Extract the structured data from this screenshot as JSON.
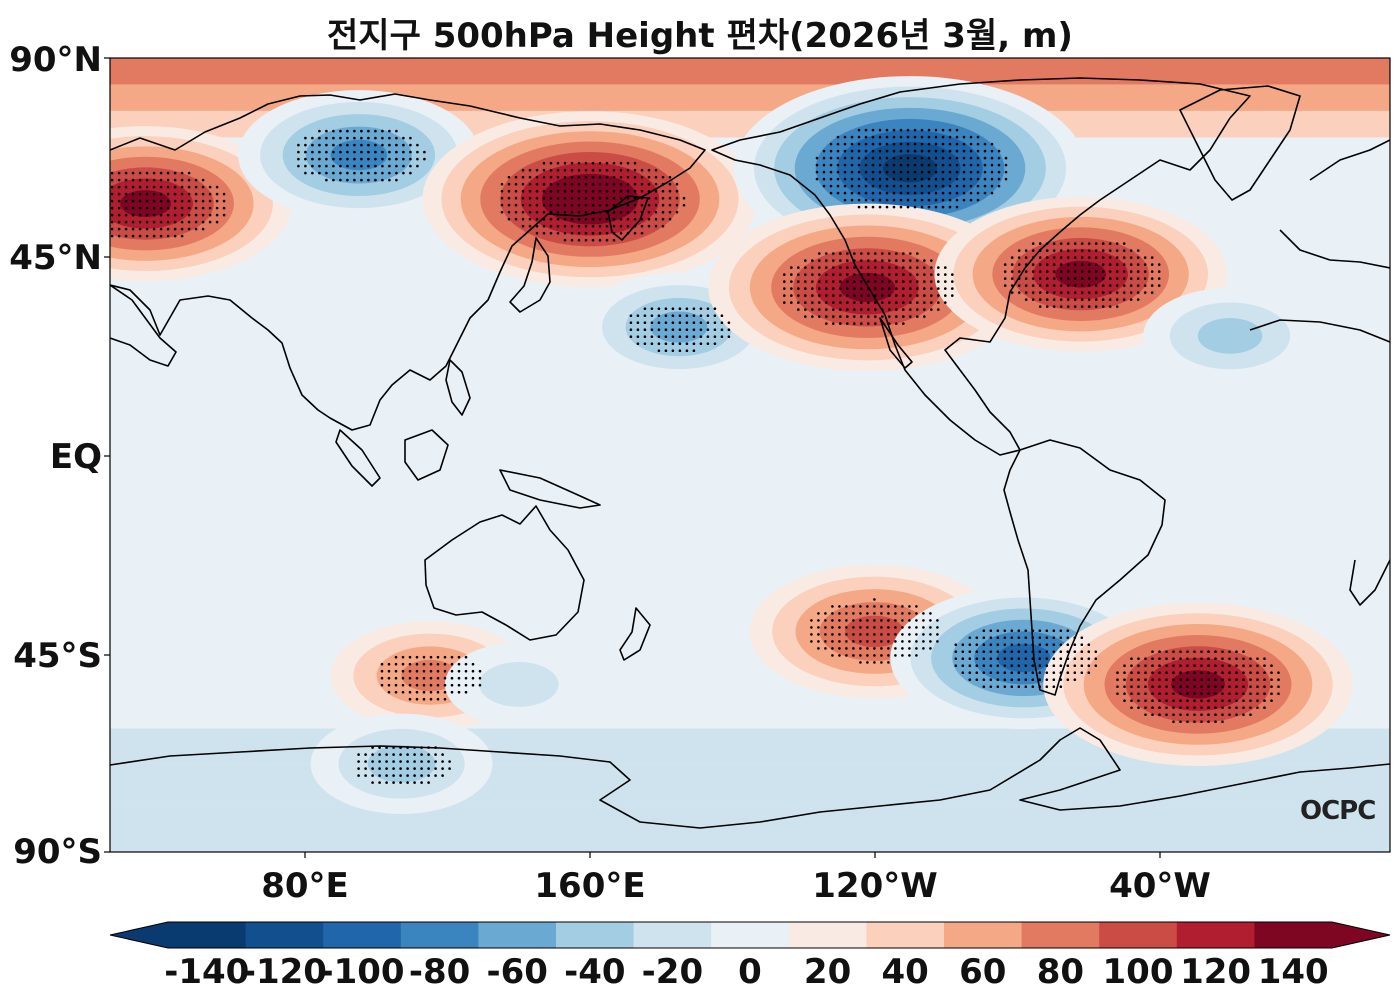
{
  "title": "전지구 500hPa Height 편차(2026년 3월, m)",
  "watermark": "OCPC",
  "axes": {
    "lat_labels": [
      "90°N",
      "45°N",
      "EQ",
      "45°S",
      "90°S"
    ],
    "lon_labels": [
      "80°E",
      "160°E",
      "120°W",
      "40°W"
    ]
  },
  "colorbar": {
    "labels": [
      "-140",
      "-120",
      "-100",
      "-80",
      "-60",
      "-40",
      "-20",
      "0",
      "20",
      "40",
      "60",
      "80",
      "100",
      "120",
      "140"
    ],
    "colors": [
      "#0a3b70",
      "#124f8e",
      "#1f66aa",
      "#3a85c0",
      "#6aa9d2",
      "#a3cde3",
      "#cfe3ef",
      "#e9f0f6",
      "#f9ebe4",
      "#fbd0bc",
      "#f4a886",
      "#e27a62",
      "#cb4b45",
      "#b01e30",
      "#7e0623"
    ]
  },
  "chart_data": {
    "type": "heatmap",
    "title": "전지구 500hPa Height 편차(2026년 3월, m)",
    "variable": "500hPa geopotential height anomaly",
    "units": "m",
    "lon_range": [
      25,
      385
    ],
    "lat_range": [
      -90,
      90
    ],
    "levels": [
      -140,
      -120,
      -100,
      -80,
      -60,
      -40,
      -20,
      0,
      20,
      40,
      60,
      80,
      100,
      120,
      140
    ],
    "anomaly_centers": [
      {
        "lon": 35,
        "lat": 57,
        "value": 125
      },
      {
        "lon": 95,
        "lat": 68,
        "value": -95
      },
      {
        "lon": 160,
        "lat": 58,
        "value": 150
      },
      {
        "lon": 185,
        "lat": 29,
        "value": -70
      },
      {
        "lon": 250,
        "lat": 65,
        "value": -160
      },
      {
        "lon": 238,
        "lat": 38,
        "value": 140
      },
      {
        "lon": 298,
        "lat": 41,
        "value": 125
      },
      {
        "lon": 340,
        "lat": 27,
        "value": -55
      },
      {
        "lon": 115,
        "lat": -50,
        "value": 70
      },
      {
        "lon": 240,
        "lat": -40,
        "value": 100
      },
      {
        "lon": 282,
        "lat": -46,
        "value": -110
      },
      {
        "lon": 331,
        "lat": -52,
        "value": 135
      },
      {
        "lon": 107,
        "lat": -70,
        "value": -60
      },
      {
        "lon": 140,
        "lat": -52,
        "value": -40
      }
    ]
  }
}
